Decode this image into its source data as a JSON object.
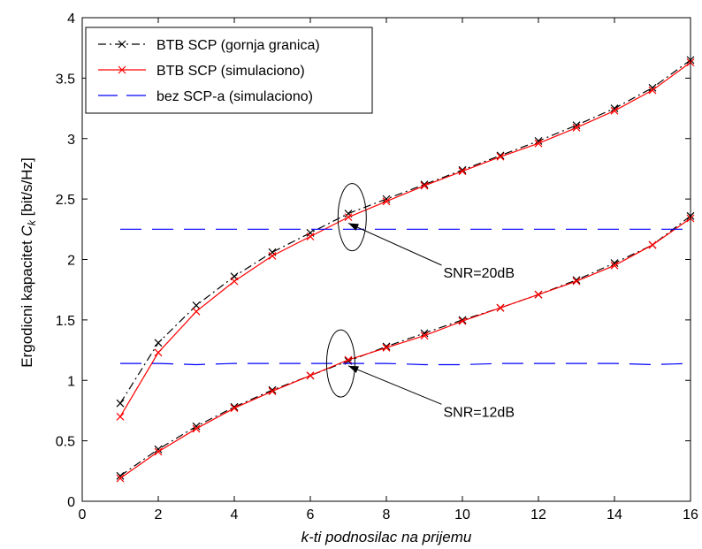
{
  "chart_data": {
    "type": "line",
    "title": "",
    "xlabel": "k-ti podnosilac na prijemu",
    "ylabel": "Ergodicni kapacitet C_k [bit/s/Hz]",
    "ylabel_main": "Ergodicni kapacitet ",
    "ylabel_symbol": "C",
    "ylabel_sub": "k",
    "ylabel_unit": " [bit/s/Hz]",
    "xlim": [
      0,
      16
    ],
    "ylim": [
      0,
      4
    ],
    "xticks": [
      "0",
      "2",
      "4",
      "6",
      "8",
      "10",
      "12",
      "14",
      "16"
    ],
    "yticks": [
      "0",
      "0.5",
      "1",
      "1.5",
      "2",
      "2.5",
      "3",
      "3.5",
      "4"
    ],
    "grid": false,
    "legend_position": "top-left",
    "x": [
      1,
      2,
      3,
      4,
      5,
      6,
      7,
      8,
      9,
      10,
      11,
      12,
      13,
      14,
      15,
      16
    ],
    "series": [
      {
        "name": "BTB SCP (gornja granica)",
        "color": "#000000",
        "style": "dash-dot",
        "marker": "x",
        "groups": [
          [
            0.81,
            1.31,
            1.62,
            1.86,
            2.06,
            2.22,
            2.38,
            2.5,
            2.62,
            2.74,
            2.86,
            2.98,
            3.11,
            3.25,
            3.42,
            3.65
          ],
          [
            0.21,
            0.43,
            0.62,
            0.78,
            0.92,
            1.04,
            1.16,
            1.28,
            1.39,
            1.5,
            1.6,
            1.71,
            1.83,
            1.97,
            2.12,
            2.36
          ]
        ]
      },
      {
        "name": "BTB SCP (simulaciono)",
        "color": "#ff0000",
        "style": "solid",
        "marker": "x",
        "groups": [
          [
            0.7,
            1.23,
            1.57,
            1.82,
            2.03,
            2.19,
            2.35,
            2.48,
            2.61,
            2.73,
            2.85,
            2.96,
            3.09,
            3.23,
            3.4,
            3.63
          ],
          [
            0.19,
            0.41,
            0.6,
            0.77,
            0.91,
            1.04,
            1.17,
            1.27,
            1.37,
            1.49,
            1.6,
            1.71,
            1.82,
            1.95,
            2.12,
            2.34
          ]
        ]
      },
      {
        "name": "bez SCP-a (simulaciono)",
        "color": "#0000ff",
        "style": "dashed",
        "marker": "none",
        "groups": [
          [
            2.25,
            2.25,
            2.25,
            2.25,
            2.25,
            2.25,
            2.25,
            2.25,
            2.25,
            2.25,
            2.25,
            2.25,
            2.25,
            2.25,
            2.25,
            2.25
          ],
          [
            1.14,
            1.14,
            1.13,
            1.14,
            1.14,
            1.14,
            1.14,
            1.14,
            1.13,
            1.13,
            1.14,
            1.14,
            1.14,
            1.14,
            1.13,
            1.14
          ]
        ]
      }
    ],
    "annotations": [
      {
        "text": "SNR=20dB",
        "ellipse_center": [
          7.1,
          2.35
        ],
        "arrow_tip": [
          7.0,
          2.3
        ],
        "label_at": [
          9.5,
          1.85
        ]
      },
      {
        "text": "SNR=12dB",
        "ellipse_center": [
          6.8,
          1.14
        ],
        "arrow_tip": [
          7.0,
          1.12
        ],
        "label_at": [
          9.5,
          0.7
        ]
      }
    ]
  }
}
